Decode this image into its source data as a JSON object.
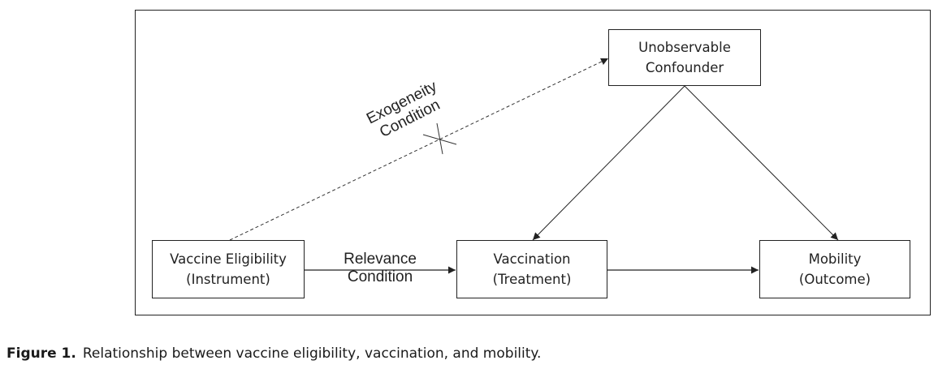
{
  "nodes": {
    "instrument": {
      "line1": "Vaccine Eligibility",
      "line2": "(Instrument)"
    },
    "treatment": {
      "line1": "Vaccination",
      "line2": "(Treatment)"
    },
    "outcome": {
      "line1": "Mobility",
      "line2": "(Outcome)"
    },
    "confounder": {
      "line1": "Unobservable",
      "line2": "Confounder"
    }
  },
  "edges": {
    "relevance": {
      "line1": "Relevance",
      "line2": "Condition"
    },
    "exogeneity": {
      "line1": "Exogeneity",
      "line2": "Condition"
    }
  },
  "caption": {
    "label": "Figure 1.",
    "text": "Relationship between vaccine eligibility, vaccination, and mobility."
  }
}
